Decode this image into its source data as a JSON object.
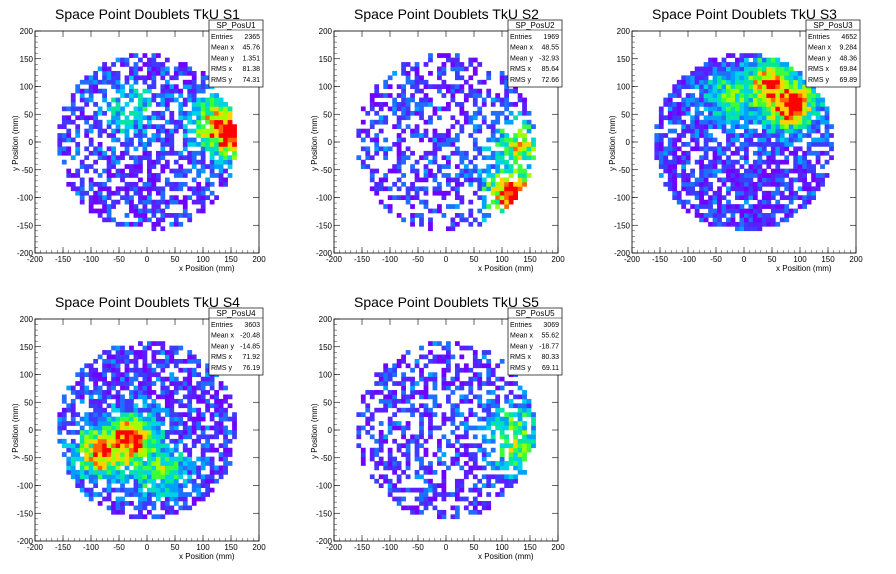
{
  "chart_data": [
    {
      "type": "heatmap",
      "title": "Space Point Doublets TkU S1",
      "xlabel": "x Position (mm)",
      "ylabel": "y Position (mm)",
      "xlim": [
        -200,
        200
      ],
      "ylim": [
        -200,
        200
      ],
      "xticks": [
        -200,
        -150,
        -100,
        -50,
        0,
        50,
        100,
        150,
        200
      ],
      "yticks": [
        -200,
        -150,
        -100,
        -50,
        0,
        50,
        100,
        150,
        200
      ],
      "stats": {
        "name": "SP_PosU1",
        "rows": [
          {
            "label": "Entries",
            "value": "2365"
          },
          {
            "label": "Mean x",
            "value": "45.76"
          },
          {
            "label": "Mean y",
            "value": "1.351"
          },
          {
            "label": "RMS x",
            "value": "81.38"
          },
          {
            "label": "RMS y",
            "value": "74.31"
          }
        ]
      },
      "hotspots": [
        {
          "x": 130,
          "y": 30,
          "intensity": 0.8
        },
        {
          "x": 150,
          "y": 20,
          "intensity": 1.0
        },
        {
          "x": -30,
          "y": 60,
          "intensity": 0.35
        }
      ]
    },
    {
      "type": "heatmap",
      "title": "Space Point Doublets TkU S2",
      "xlabel": "x Position (mm)",
      "ylabel": "y Position (mm)",
      "xlim": [
        -200,
        200
      ],
      "ylim": [
        -200,
        200
      ],
      "xticks": [
        -200,
        -150,
        -100,
        -50,
        0,
        50,
        100,
        150,
        200
      ],
      "yticks": [
        -200,
        -150,
        -100,
        -50,
        0,
        50,
        100,
        150,
        200
      ],
      "stats": {
        "name": "SP_PosU2",
        "rows": [
          {
            "label": "Entries",
            "value": "1969"
          },
          {
            "label": "Mean x",
            "value": "48.55"
          },
          {
            "label": "Mean y",
            "value": "-32.93"
          },
          {
            "label": "RMS x",
            "value": "85.64"
          },
          {
            "label": "RMS y",
            "value": "72.66"
          }
        ]
      },
      "hotspots": [
        {
          "x": 130,
          "y": -10,
          "intensity": 0.6
        },
        {
          "x": 120,
          "y": -90,
          "intensity": 0.9
        }
      ]
    },
    {
      "type": "heatmap",
      "title": "Space Point Doublets TkU S3",
      "xlabel": "x Position (mm)",
      "ylabel": "y Position (mm)",
      "xlim": [
        -200,
        200
      ],
      "ylim": [
        -200,
        200
      ],
      "xticks": [
        -200,
        -150,
        -100,
        -50,
        0,
        50,
        100,
        150,
        200
      ],
      "yticks": [
        -200,
        -150,
        -100,
        -50,
        0,
        50,
        100,
        150,
        200
      ],
      "stats": {
        "name": "SP_PosU3",
        "rows": [
          {
            "label": "Entries",
            "value": "4652"
          },
          {
            "label": "Mean x",
            "value": "9.284"
          },
          {
            "label": "Mean y",
            "value": "48.36"
          },
          {
            "label": "RMS x",
            "value": "69.84"
          },
          {
            "label": "RMS y",
            "value": "69.89"
          }
        ]
      },
      "hotspots": [
        {
          "x": 50,
          "y": 100,
          "intensity": 0.85
        },
        {
          "x": 80,
          "y": 70,
          "intensity": 0.9
        },
        {
          "x": -20,
          "y": 80,
          "intensity": 0.5
        }
      ]
    },
    {
      "type": "heatmap",
      "title": "Space Point Doublets TkU S4",
      "xlabel": "x Position (mm)",
      "ylabel": "y Position (mm)",
      "xlim": [
        -200,
        200
      ],
      "ylim": [
        -200,
        200
      ],
      "xticks": [
        -200,
        -150,
        -100,
        -50,
        0,
        50,
        100,
        150,
        200
      ],
      "yticks": [
        -200,
        -150,
        -100,
        -50,
        0,
        50,
        100,
        150,
        200
      ],
      "stats": {
        "name": "SP_PosU4",
        "rows": [
          {
            "label": "Entries",
            "value": "3603"
          },
          {
            "label": "Mean x",
            "value": "-20.48"
          },
          {
            "label": "Mean y",
            "value": "-14.85"
          },
          {
            "label": "RMS x",
            "value": "71.92"
          },
          {
            "label": "RMS y",
            "value": "76.19"
          }
        ]
      },
      "hotspots": [
        {
          "x": -80,
          "y": -40,
          "intensity": 0.8
        },
        {
          "x": -30,
          "y": -20,
          "intensity": 0.9
        },
        {
          "x": 20,
          "y": -70,
          "intensity": 0.5
        }
      ]
    },
    {
      "type": "heatmap",
      "title": "Space Point Doublets TkU S5",
      "xlabel": "x Position (mm)",
      "ylabel": "y Position (mm)",
      "xlim": [
        -200,
        200
      ],
      "ylim": [
        -200,
        200
      ],
      "xticks": [
        -200,
        -150,
        -100,
        -50,
        0,
        50,
        100,
        150,
        200
      ],
      "yticks": [
        -200,
        -150,
        -100,
        -50,
        0,
        50,
        100,
        150,
        200
      ],
      "stats": {
        "name": "SP_PosU5",
        "rows": [
          {
            "label": "Entries",
            "value": "3069"
          },
          {
            "label": "Mean x",
            "value": "55.62"
          },
          {
            "label": "Mean y",
            "value": "-18.77"
          },
          {
            "label": "RMS x",
            "value": "80.33"
          },
          {
            "label": "RMS y",
            "value": "69.11"
          }
        ]
      },
      "hotspots": [
        {
          "x": 130,
          "y": -30,
          "intensity": 0.55
        },
        {
          "x": 120,
          "y": 0,
          "intensity": 0.5
        }
      ]
    }
  ],
  "palette": [
    "#7000ff",
    "#5a1eff",
    "#3c3cff",
    "#1e6eff",
    "#00a0ff",
    "#00d2e6",
    "#00e6a0",
    "#3cff3c",
    "#a0ff00",
    "#ffd200",
    "#ff6400",
    "#ff0000"
  ]
}
